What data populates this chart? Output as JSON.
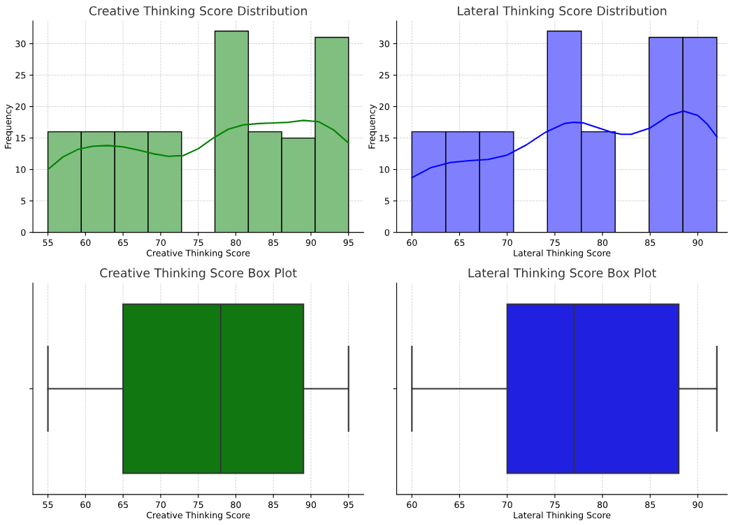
{
  "chart_data": [
    {
      "type": "histogram",
      "title": "Creative Thinking Score Distribution",
      "xlabel": "Creative Thinking Score",
      "ylabel": "Frequency",
      "bins": [
        55,
        59.44,
        63.89,
        68.33,
        72.78,
        77.22,
        81.67,
        86.11,
        90.56,
        95
      ],
      "values": [
        16,
        16,
        16,
        16,
        0,
        32,
        16,
        15,
        31
      ],
      "color": "#80bf80",
      "series": [
        {
          "type": "line",
          "color": "#008000",
          "x": [
            55,
            57,
            59,
            61,
            63,
            65,
            67,
            69,
            71,
            73,
            75,
            77,
            79,
            81,
            83,
            85,
            87,
            89,
            91,
            93,
            95
          ],
          "values": [
            10,
            12,
            13.2,
            13.7,
            13.8,
            13.6,
            13.1,
            12.5,
            12.1,
            12.2,
            13.3,
            15,
            16.4,
            17.1,
            17.3,
            17.4,
            17.5,
            17.8,
            17.6,
            16.3,
            14.2
          ]
        }
      ],
      "xlim": [
        53,
        97
      ],
      "xticks": [
        55,
        60,
        65,
        70,
        75,
        80,
        85,
        90,
        95
      ],
      "ylim": [
        0,
        33.6
      ],
      "yticks": [
        0,
        5,
        10,
        15,
        20,
        25,
        30
      ],
      "grid": true
    },
    {
      "type": "histogram",
      "title": "Lateral Thinking Score Distribution",
      "xlabel": "Lateral Thinking Score",
      "ylabel": "Frequency",
      "bins": [
        60,
        63.56,
        67.11,
        70.67,
        74.22,
        77.78,
        81.33,
        84.89,
        88.44,
        92
      ],
      "values": [
        16,
        16,
        16,
        0,
        32,
        16,
        0,
        31,
        31
      ],
      "color": "#8080ff",
      "series": [
        {
          "type": "line",
          "color": "#0000ff",
          "x": [
            60,
            62,
            64,
            66,
            68,
            70,
            72,
            74,
            76,
            77,
            78,
            80,
            81,
            82,
            83,
            85,
            87,
            88.5,
            90,
            91,
            92
          ],
          "values": [
            8.7,
            10.3,
            11.1,
            11.4,
            11.6,
            12.3,
            13.9,
            15.9,
            17.3,
            17.5,
            17.4,
            16.4,
            15.9,
            15.6,
            15.6,
            16.6,
            18.6,
            19.3,
            18.6,
            17.2,
            15.2
          ]
        }
      ],
      "xlim": [
        58.4,
        93.1
      ],
      "xticks": [
        60,
        65,
        70,
        75,
        80,
        85,
        90
      ],
      "ylim": [
        0,
        33.6
      ],
      "yticks": [
        0,
        5,
        10,
        15,
        20,
        25,
        30
      ],
      "grid": true
    },
    {
      "type": "box",
      "title": "Creative Thinking Score Box Plot",
      "xlabel": "Creative Thinking Score",
      "orientation": "horizontal",
      "categories": [
        null
      ],
      "color": "#117711",
      "boxes": [
        {
          "low": 55,
          "q1": 65,
          "median": 78,
          "q3": 89,
          "high": 95
        }
      ],
      "xlim": [
        53,
        97
      ],
      "xticks": [
        55,
        60,
        65,
        70,
        75,
        80,
        85,
        90,
        95
      ],
      "grid": "x",
      "tick_labels": "x"
    },
    {
      "type": "box",
      "title": "Lateral Thinking Score Box Plot",
      "xlabel": "Lateral Thinking Score",
      "orientation": "horizontal",
      "categories": [
        null
      ],
      "color": "#2020e0",
      "boxes": [
        {
          "low": 60,
          "q1": 70,
          "median": 77,
          "q3": 88,
          "high": 92
        }
      ],
      "xlim": [
        58.4,
        93.1
      ],
      "xticks": [
        60,
        65,
        70,
        75,
        80,
        85,
        90
      ],
      "grid": "x",
      "tick_labels": "x"
    }
  ]
}
